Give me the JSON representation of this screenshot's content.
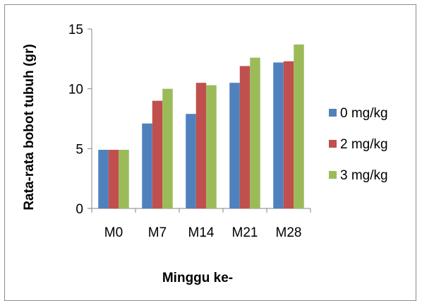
{
  "chart_data": {
    "type": "bar",
    "title": "",
    "xlabel": "Minggu ke-",
    "ylabel": "Rata-rata bobot tubuh (gr)",
    "categories": [
      "M0",
      "M7",
      "M14",
      "M21",
      "M28"
    ],
    "ylim": [
      0,
      15
    ],
    "yticks": [
      0,
      5,
      10,
      15
    ],
    "grid": false,
    "legend": "right",
    "series": [
      {
        "name": "0 mg/kg",
        "color": "#4f81bd",
        "values": [
          4.9,
          7.1,
          7.9,
          10.5,
          12.2
        ]
      },
      {
        "name": "2 mg/kg",
        "color": "#c0504d",
        "values": [
          4.9,
          9.0,
          10.5,
          11.9,
          12.3
        ]
      },
      {
        "name": "3 mg/kg",
        "color": "#9bbb59",
        "values": [
          4.9,
          10.0,
          10.3,
          12.6,
          13.7
        ]
      }
    ]
  }
}
